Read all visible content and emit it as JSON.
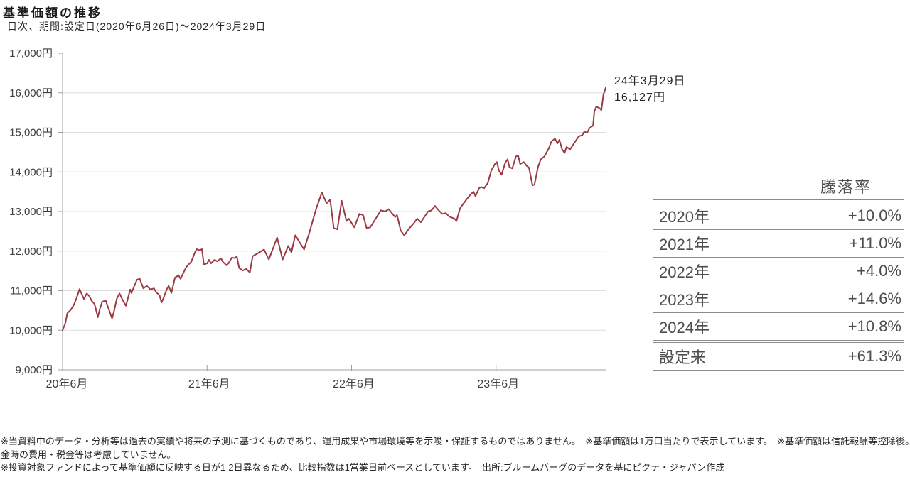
{
  "page": {
    "title": "基準価額の推移",
    "subtitle": "日次、期間:設定日(2020年6月26日)～2024年3月29日"
  },
  "chart_data": {
    "type": "line",
    "title": "基準価額の推移",
    "series_name": "基準価額",
    "unit": "円",
    "x_start": "2020-06-26",
    "x_end": "2024-03-29",
    "ylim": [
      9000,
      17000
    ],
    "grid": "horizontal",
    "legend": "none",
    "line_color": "#9B3A42",
    "yticks": [
      {
        "v": 17000,
        "label": "17,000円"
      },
      {
        "v": 16000,
        "label": "16,000円"
      },
      {
        "v": 15000,
        "label": "15,000円"
      },
      {
        "v": 14000,
        "label": "14,000円"
      },
      {
        "v": 13000,
        "label": "13,000円"
      },
      {
        "v": 12000,
        "label": "12,000円"
      },
      {
        "v": 11000,
        "label": "11,000円"
      },
      {
        "v": 10000,
        "label": "10,000円"
      },
      {
        "v": 9000,
        "label": "9,000円"
      }
    ],
    "xticks": [
      {
        "date": "2020-06-26",
        "label": "20年6月"
      },
      {
        "date": "2021-06-26",
        "label": "21年6月"
      },
      {
        "date": "2022-06-26",
        "label": "22年6月"
      },
      {
        "date": "2023-06-26",
        "label": "23年6月"
      }
    ],
    "annotation": {
      "line1": "24年3月29日",
      "line2": "16,127円"
    },
    "points": [
      [
        "2020-06-26",
        10000
      ],
      [
        "2020-07-03",
        10180
      ],
      [
        "2020-07-08",
        10430
      ],
      [
        "2020-07-17",
        10520
      ],
      [
        "2020-07-25",
        10650
      ],
      [
        "2020-08-01",
        10830
      ],
      [
        "2020-08-08",
        11040
      ],
      [
        "2020-08-14",
        10900
      ],
      [
        "2020-08-19",
        10790
      ],
      [
        "2020-08-26",
        10930
      ],
      [
        "2020-09-01",
        10870
      ],
      [
        "2020-09-08",
        10740
      ],
      [
        "2020-09-15",
        10660
      ],
      [
        "2020-09-23",
        10330
      ],
      [
        "2020-09-28",
        10530
      ],
      [
        "2020-10-04",
        10720
      ],
      [
        "2020-10-13",
        10750
      ],
      [
        "2020-10-20",
        10550
      ],
      [
        "2020-10-29",
        10300
      ],
      [
        "2020-11-03",
        10480
      ],
      [
        "2020-11-10",
        10800
      ],
      [
        "2020-11-17",
        10930
      ],
      [
        "2020-11-24",
        10780
      ],
      [
        "2020-12-03",
        10620
      ],
      [
        "2020-12-14",
        11030
      ],
      [
        "2020-12-17",
        10940
      ],
      [
        "2020-12-31",
        11280
      ],
      [
        "2021-01-07",
        11300
      ],
      [
        "2021-01-16",
        11060
      ],
      [
        "2021-01-25",
        11120
      ],
      [
        "2021-02-03",
        11030
      ],
      [
        "2021-02-12",
        11060
      ],
      [
        "2021-02-17",
        10970
      ],
      [
        "2021-02-26",
        10880
      ],
      [
        "2021-03-03",
        10700
      ],
      [
        "2021-03-07",
        10790
      ],
      [
        "2021-03-16",
        11030
      ],
      [
        "2021-03-21",
        11120
      ],
      [
        "2021-03-28",
        10940
      ],
      [
        "2021-04-06",
        11330
      ],
      [
        "2021-04-15",
        11390
      ],
      [
        "2021-04-20",
        11300
      ],
      [
        "2021-05-03",
        11570
      ],
      [
        "2021-05-08",
        11640
      ],
      [
        "2021-05-17",
        11730
      ],
      [
        "2021-05-26",
        11960
      ],
      [
        "2021-05-31",
        12050
      ],
      [
        "2021-06-07",
        12020
      ],
      [
        "2021-06-13",
        12050
      ],
      [
        "2021-06-18",
        11660
      ],
      [
        "2021-06-26",
        11690
      ],
      [
        "2021-07-01",
        11780
      ],
      [
        "2021-07-06",
        11690
      ],
      [
        "2021-07-15",
        11780
      ],
      [
        "2021-07-22",
        11740
      ],
      [
        "2021-07-31",
        11820
      ],
      [
        "2021-08-05",
        11730
      ],
      [
        "2021-08-14",
        11640
      ],
      [
        "2021-08-19",
        11690
      ],
      [
        "2021-08-28",
        11840
      ],
      [
        "2021-09-04",
        11820
      ],
      [
        "2021-09-09",
        11870
      ],
      [
        "2021-09-15",
        11570
      ],
      [
        "2021-09-24",
        11510
      ],
      [
        "2021-10-03",
        11550
      ],
      [
        "2021-10-12",
        11460
      ],
      [
        "2021-10-19",
        11870
      ],
      [
        "2021-11-02",
        11950
      ],
      [
        "2021-11-17",
        12040
      ],
      [
        "2021-11-29",
        11790
      ],
      [
        "2021-12-20",
        12340
      ],
      [
        "2022-01-03",
        11790
      ],
      [
        "2022-01-17",
        12130
      ],
      [
        "2022-01-25",
        11970
      ],
      [
        "2022-02-04",
        12400
      ],
      [
        "2022-02-13",
        12250
      ],
      [
        "2022-02-26",
        12040
      ],
      [
        "2022-03-10",
        12420
      ],
      [
        "2022-03-28",
        13050
      ],
      [
        "2022-04-12",
        13480
      ],
      [
        "2022-04-24",
        13210
      ],
      [
        "2022-05-03",
        13300
      ],
      [
        "2022-05-12",
        12580
      ],
      [
        "2022-05-21",
        12550
      ],
      [
        "2022-06-01",
        13270
      ],
      [
        "2022-06-13",
        12760
      ],
      [
        "2022-06-19",
        12820
      ],
      [
        "2022-07-03",
        12600
      ],
      [
        "2022-07-16",
        12940
      ],
      [
        "2022-07-25",
        12910
      ],
      [
        "2022-08-03",
        12580
      ],
      [
        "2022-08-12",
        12600
      ],
      [
        "2022-08-26",
        12820
      ],
      [
        "2022-09-08",
        13030
      ],
      [
        "2022-09-19",
        13000
      ],
      [
        "2022-09-28",
        13060
      ],
      [
        "2022-10-14",
        12860
      ],
      [
        "2022-10-19",
        12910
      ],
      [
        "2022-10-28",
        12520
      ],
      [
        "2022-11-06",
        12400
      ],
      [
        "2022-11-19",
        12580
      ],
      [
        "2022-11-30",
        12700
      ],
      [
        "2022-12-09",
        12820
      ],
      [
        "2022-12-18",
        12730
      ],
      [
        "2023-01-05",
        13000
      ],
      [
        "2023-01-14",
        13030
      ],
      [
        "2023-01-23",
        13140
      ],
      [
        "2023-02-01",
        13030
      ],
      [
        "2023-02-10",
        12940
      ],
      [
        "2023-02-19",
        12960
      ],
      [
        "2023-02-28",
        12870
      ],
      [
        "2023-03-13",
        12820
      ],
      [
        "2023-03-18",
        12760
      ],
      [
        "2023-03-27",
        13080
      ],
      [
        "2023-04-03",
        13180
      ],
      [
        "2023-04-12",
        13300
      ],
      [
        "2023-04-21",
        13410
      ],
      [
        "2023-04-30",
        13500
      ],
      [
        "2023-05-05",
        13390
      ],
      [
        "2023-05-14",
        13590
      ],
      [
        "2023-05-20",
        13620
      ],
      [
        "2023-05-27",
        13590
      ],
      [
        "2023-06-05",
        13720
      ],
      [
        "2023-06-14",
        14040
      ],
      [
        "2023-06-23",
        14200
      ],
      [
        "2023-06-28",
        14250
      ],
      [
        "2023-07-03",
        14040
      ],
      [
        "2023-07-10",
        13930
      ],
      [
        "2023-07-19",
        14230
      ],
      [
        "2023-07-25",
        14320
      ],
      [
        "2023-07-30",
        14120
      ],
      [
        "2023-08-06",
        14090
      ],
      [
        "2023-08-15",
        14390
      ],
      [
        "2023-08-21",
        14410
      ],
      [
        "2023-08-26",
        14200
      ],
      [
        "2023-09-04",
        14250
      ],
      [
        "2023-09-11",
        14160
      ],
      [
        "2023-09-17",
        14110
      ],
      [
        "2023-09-26",
        13660
      ],
      [
        "2023-10-01",
        13680
      ],
      [
        "2023-10-10",
        14130
      ],
      [
        "2023-10-17",
        14320
      ],
      [
        "2023-10-26",
        14390
      ],
      [
        "2023-11-01",
        14500
      ],
      [
        "2023-11-06",
        14590
      ],
      [
        "2023-11-13",
        14770
      ],
      [
        "2023-11-22",
        14840
      ],
      [
        "2023-11-28",
        14720
      ],
      [
        "2023-12-03",
        14810
      ],
      [
        "2023-12-10",
        14570
      ],
      [
        "2023-12-16",
        14480
      ],
      [
        "2023-12-21",
        14630
      ],
      [
        "2023-12-30",
        14570
      ],
      [
        "2024-01-06",
        14680
      ],
      [
        "2024-01-15",
        14810
      ],
      [
        "2024-01-21",
        14900
      ],
      [
        "2024-01-30",
        14930
      ],
      [
        "2024-02-04",
        15020
      ],
      [
        "2024-02-11",
        14990
      ],
      [
        "2024-02-17",
        15110
      ],
      [
        "2024-02-26",
        15170
      ],
      [
        "2024-02-29",
        15520
      ],
      [
        "2024-03-05",
        15650
      ],
      [
        "2024-03-14",
        15610
      ],
      [
        "2024-03-18",
        15560
      ],
      [
        "2024-03-23",
        15950
      ],
      [
        "2024-03-29",
        16127
      ]
    ]
  },
  "table": {
    "header": "騰落率",
    "rows": [
      {
        "label": "2020年",
        "value": "+10.0%"
      },
      {
        "label": "2021年",
        "value": "+11.0%"
      },
      {
        "label": "2022年",
        "value": "+4.0%"
      },
      {
        "label": "2023年",
        "value": "+14.6%"
      },
      {
        "label": "2024年",
        "value": "+10.8%"
      },
      {
        "label": "設定来",
        "value": "+61.3%"
      }
    ]
  },
  "footnotes": {
    "lines": [
      "※当資料中のデータ・分析等は過去の実績や将来の予測に基づくものであり、運用成果や市場環境等を示唆・保証するものではありません。　※基準価額は1万口当たりで表示しています。　※基準価額は信託報酬等控除後。換",
      "金時の費用・税金等は考慮していません。",
      "※投資対象ファンドによって基準価額に反映する日が1-2日異なるため、比較指数は1営業日前ベースとしています。　出所:ブルームバーグのデータを基にピクテ・ジャパン作成"
    ]
  },
  "colors": {
    "line": "#9B3A42",
    "grid": "#DEDEDE",
    "axis": "#A0A0A0",
    "table_border": "#8A8A8A",
    "axis_text": "#3F3F3F"
  }
}
